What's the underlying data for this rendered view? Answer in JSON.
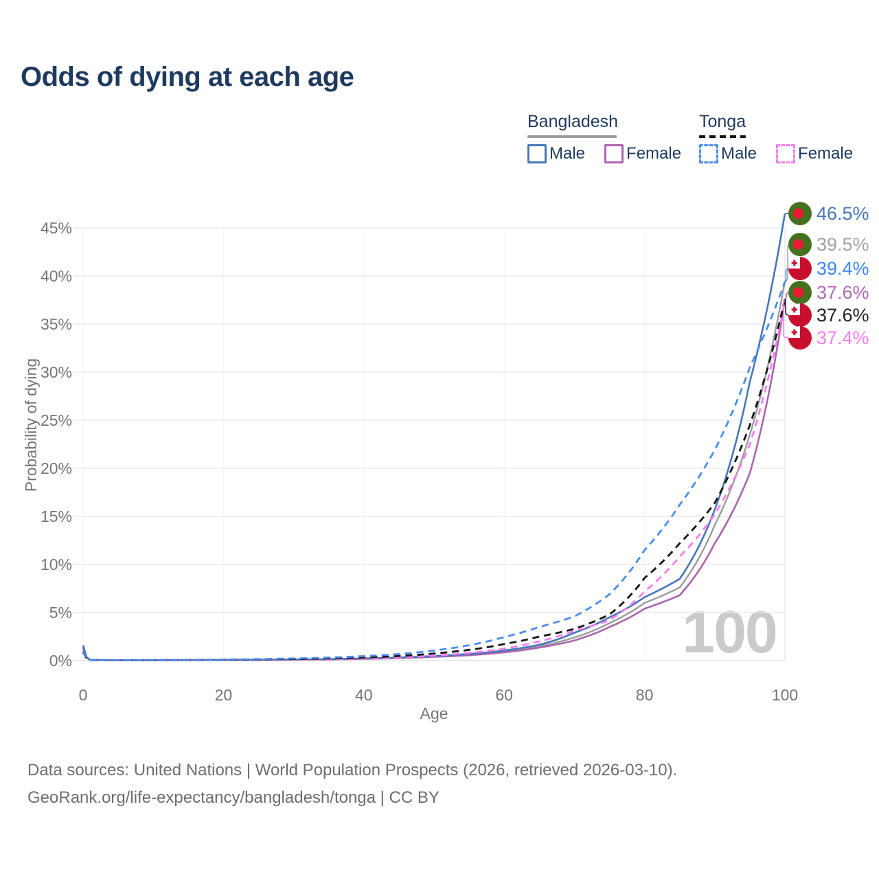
{
  "title": "Odds of dying at each age",
  "legend": {
    "groups": [
      {
        "label": "Bangladesh",
        "style": "solid",
        "items": [
          {
            "label": "Male"
          },
          {
            "label": "Female"
          }
        ]
      },
      {
        "label": "Tonga",
        "style": "dashed",
        "items": [
          {
            "label": "Male"
          },
          {
            "label": "Female"
          }
        ]
      }
    ]
  },
  "chart_data": {
    "type": "line",
    "title": "Odds of dying at each age",
    "xlabel": "Age",
    "ylabel": "Probability of dying",
    "x_ticks": [
      0,
      20,
      40,
      60,
      80,
      100
    ],
    "y_ticks": [
      "0%",
      "5%",
      "10%",
      "15%",
      "20%",
      "25%",
      "30%",
      "35%",
      "40%",
      "45%"
    ],
    "xlim": [
      0,
      100
    ],
    "ylim_percent": [
      0,
      47
    ],
    "grid": "horizontal-major",
    "legend_position": "top-right",
    "age_indicator": "100",
    "series": [
      {
        "name": "Bangladesh Male",
        "country": "Bangladesh",
        "sex": "male",
        "line_style": "solid",
        "color": "#4577b8",
        "end_value_pct": 46.5,
        "points": [
          [
            0,
            1.6
          ],
          [
            1,
            0.08
          ],
          [
            5,
            0.045
          ],
          [
            15,
            0.06
          ],
          [
            25,
            0.1
          ],
          [
            35,
            0.16
          ],
          [
            45,
            0.32
          ],
          [
            50,
            0.48
          ],
          [
            55,
            0.7
          ],
          [
            60,
            1.05
          ],
          [
            65,
            1.65
          ],
          [
            70,
            2.9
          ],
          [
            75,
            4.5
          ],
          [
            80,
            6.6
          ],
          [
            85,
            8.5
          ],
          [
            90,
            15.7
          ],
          [
            95,
            29
          ],
          [
            100,
            46.5
          ]
        ]
      },
      {
        "name": "Bangladesh Female",
        "country": "Bangladesh",
        "sex": "female",
        "line_style": "solid",
        "color": "#ab63b0",
        "end_value_pct": 37.6,
        "points": [
          [
            0,
            1.3
          ],
          [
            1,
            0.07
          ],
          [
            5,
            0.035
          ],
          [
            15,
            0.05
          ],
          [
            25,
            0.08
          ],
          [
            35,
            0.12
          ],
          [
            45,
            0.26
          ],
          [
            50,
            0.39
          ],
          [
            55,
            0.56
          ],
          [
            60,
            0.86
          ],
          [
            65,
            1.35
          ],
          [
            70,
            2.1
          ],
          [
            75,
            3.5
          ],
          [
            80,
            5.4
          ],
          [
            85,
            6.8
          ],
          [
            90,
            12.2
          ],
          [
            95,
            19.5
          ],
          [
            100,
            37.6
          ]
        ]
      },
      {
        "name": "Bangladesh Both sexes",
        "country": "Bangladesh",
        "sex": "total",
        "line_style": "solid",
        "color": "#9b9b9b",
        "end_value_pct": 39.5,
        "points": [
          [
            0,
            1.45
          ],
          [
            1,
            0.075
          ],
          [
            5,
            0.04
          ],
          [
            15,
            0.055
          ],
          [
            25,
            0.09
          ],
          [
            35,
            0.14
          ],
          [
            45,
            0.29
          ],
          [
            50,
            0.43
          ],
          [
            55,
            0.62
          ],
          [
            60,
            0.95
          ],
          [
            65,
            1.5
          ],
          [
            70,
            2.4
          ],
          [
            75,
            3.9
          ],
          [
            80,
            6.0
          ],
          [
            85,
            7.6
          ],
          [
            90,
            14.1
          ],
          [
            95,
            23.5
          ],
          [
            100,
            39.5
          ]
        ]
      },
      {
        "name": "Tonga Male",
        "country": "Tonga",
        "sex": "male",
        "line_style": "dashed",
        "color": "#4a8cf2",
        "end_value_pct": 39.4,
        "points": [
          [
            0,
            1.0
          ],
          [
            1,
            0.06
          ],
          [
            5,
            0.045
          ],
          [
            15,
            0.08
          ],
          [
            25,
            0.16
          ],
          [
            35,
            0.32
          ],
          [
            45,
            0.68
          ],
          [
            50,
            1.05
          ],
          [
            55,
            1.6
          ],
          [
            60,
            2.45
          ],
          [
            65,
            3.5
          ],
          [
            70,
            4.6
          ],
          [
            75,
            6.9
          ],
          [
            80,
            11.5
          ],
          [
            85,
            16.2
          ],
          [
            90,
            21.9
          ],
          [
            95,
            30.5
          ],
          [
            100,
            39.4
          ]
        ]
      },
      {
        "name": "Tonga Female",
        "country": "Tonga",
        "sex": "female",
        "line_style": "dashed",
        "color": "#f87df0",
        "end_value_pct": 37.4,
        "points": [
          [
            0,
            0.85
          ],
          [
            1,
            0.05
          ],
          [
            5,
            0.035
          ],
          [
            15,
            0.05
          ],
          [
            25,
            0.09
          ],
          [
            35,
            0.15
          ],
          [
            45,
            0.33
          ],
          [
            50,
            0.52
          ],
          [
            55,
            0.8
          ],
          [
            60,
            1.25
          ],
          [
            65,
            2.0
          ],
          [
            70,
            3.1
          ],
          [
            75,
            4.2
          ],
          [
            80,
            7.2
          ],
          [
            85,
            10.8
          ],
          [
            90,
            15.2
          ],
          [
            95,
            22.5
          ],
          [
            100,
            37.4
          ]
        ]
      },
      {
        "name": "Tonga Both sexes",
        "country": "Tonga",
        "sex": "total",
        "line_style": "dashed",
        "color": "#141414",
        "end_value_pct": 37.6,
        "points": [
          [
            0,
            0.92
          ],
          [
            1,
            0.055
          ],
          [
            5,
            0.04
          ],
          [
            15,
            0.065
          ],
          [
            25,
            0.12
          ],
          [
            35,
            0.22
          ],
          [
            45,
            0.48
          ],
          [
            50,
            0.74
          ],
          [
            55,
            1.12
          ],
          [
            60,
            1.72
          ],
          [
            65,
            2.5
          ],
          [
            70,
            3.3
          ],
          [
            75,
            4.8
          ],
          [
            80,
            8.6
          ],
          [
            85,
            12.2
          ],
          [
            90,
            16.4
          ],
          [
            95,
            24.5
          ],
          [
            100,
            37.6
          ]
        ]
      }
    ],
    "end_labels": [
      {
        "value": "46.5%",
        "pct": 46.5,
        "flag": "bangladesh",
        "color": "#4577b8"
      },
      {
        "value": "39.5%",
        "pct": 39.5,
        "flag": "bangladesh",
        "color": "#a3a3a3"
      },
      {
        "value": "39.4%",
        "pct": 39.4,
        "flag": "tonga",
        "color": "#3d87f5"
      },
      {
        "value": "37.6%",
        "pct": 37.6,
        "flag": "bangladesh",
        "color": "#b168b6"
      },
      {
        "value": "37.6%",
        "pct": 37.6,
        "flag": "tonga",
        "color": "#222222"
      },
      {
        "value": "37.4%",
        "pct": 37.4,
        "flag": "tonga",
        "color": "#fb7cf1"
      }
    ],
    "flag_colors": {
      "bangladesh_green": "#46701f",
      "bangladesh_red": "#ef1832",
      "tonga_red": "#c8102e",
      "tonga_white": "#ffffff"
    }
  },
  "footer": {
    "line1": "Data sources: United Nations | World Population Prospects (2026, retrieved 2026-03-10).",
    "line2": "GeoRank.org/life-expectancy/bangladesh/tonga | CC BY"
  }
}
